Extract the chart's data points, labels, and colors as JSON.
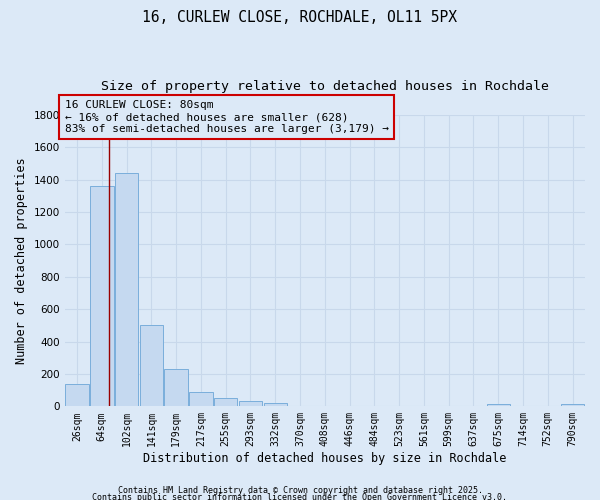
{
  "title1": "16, CURLEW CLOSE, ROCHDALE, OL11 5PX",
  "title2": "Size of property relative to detached houses in Rochdale",
  "xlabel": "Distribution of detached houses by size in Rochdale",
  "ylabel": "Number of detached properties",
  "categories": [
    "26sqm",
    "64sqm",
    "102sqm",
    "141sqm",
    "179sqm",
    "217sqm",
    "255sqm",
    "293sqm",
    "332sqm",
    "370sqm",
    "408sqm",
    "446sqm",
    "484sqm",
    "523sqm",
    "561sqm",
    "599sqm",
    "637sqm",
    "675sqm",
    "714sqm",
    "752sqm",
    "790sqm"
  ],
  "values": [
    140,
    1360,
    1440,
    500,
    230,
    90,
    50,
    30,
    18,
    5,
    5,
    0,
    0,
    0,
    0,
    0,
    0,
    15,
    5,
    0,
    15
  ],
  "bar_color": "#c5d9f0",
  "bar_edge_color": "#7aaedb",
  "background_color": "#dce9f7",
  "grid_color": "#c8d8eb",
  "vline_x": 1.3,
  "vline_color": "#990000",
  "annotation_line1": "16 CURLEW CLOSE: 80sqm",
  "annotation_line2": "← 16% of detached houses are smaller (628)",
  "annotation_line3": "83% of semi-detached houses are larger (3,179) →",
  "annotation_box_color": "#cc0000",
  "annotation_bg": "#dce9f7",
  "footer1": "Contains HM Land Registry data © Crown copyright and database right 2025.",
  "footer2": "Contains public sector information licensed under the Open Government Licence v3.0.",
  "ylim": [
    0,
    1800
  ],
  "title_fontsize": 10.5,
  "subtitle_fontsize": 9.5,
  "tick_fontsize": 7,
  "ylabel_fontsize": 8.5,
  "xlabel_fontsize": 8.5,
  "footer_fontsize": 6,
  "ann_fontsize": 8
}
